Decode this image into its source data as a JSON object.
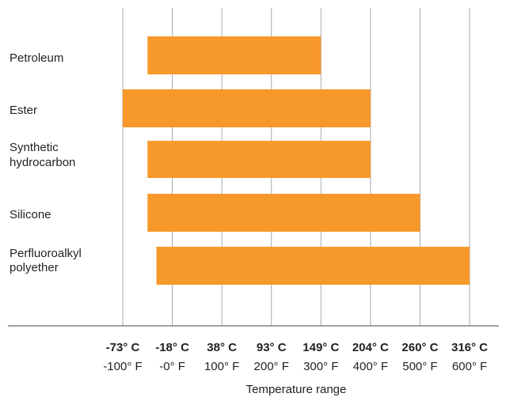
{
  "chart_data": {
    "type": "bar",
    "orientation": "horizontal",
    "bar_style": "floating-range",
    "categories": [
      [
        "Petroleum"
      ],
      [
        "Ester"
      ],
      [
        "Synthetic",
        "hydrocarbon"
      ],
      [
        "Silicone"
      ],
      [
        "Perfluoroalkyl",
        "polyether"
      ]
    ],
    "series": [
      {
        "ranges_F": [
          [
            -50,
            300
          ],
          [
            -100,
            400
          ],
          [
            -50,
            400
          ],
          [
            -50,
            500
          ],
          [
            -32,
            600
          ]
        ]
      }
    ],
    "x_ticks_F": [
      -100,
      0,
      100,
      200,
      300,
      400,
      500,
      600
    ],
    "x_tick_labels_C": [
      "-73° C",
      "-18° C",
      "38° C",
      "93° C",
      "149° C",
      "204° C",
      "260° C",
      "316° C"
    ],
    "x_tick_labels_F": [
      "-100° F",
      "-0° F",
      "100° F",
      "200° F",
      "300° F",
      "400° F",
      "500° F",
      "600° F"
    ],
    "xlabel": "Temperature range",
    "xlim_F": [
      -100,
      600
    ],
    "grid": "vertical",
    "legend": "none",
    "bar_color": "#f7982b",
    "grid_color": "#a7a9ac",
    "axis_color": "#808285",
    "text_color": "#231f20"
  }
}
